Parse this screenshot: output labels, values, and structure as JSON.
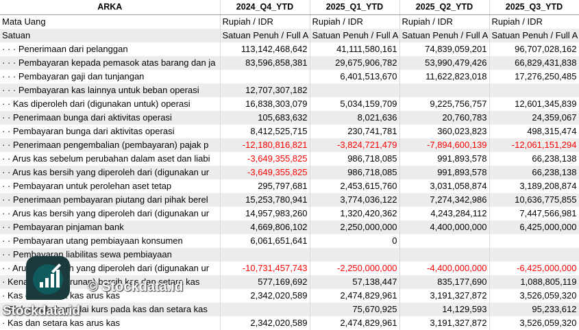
{
  "header": [
    "ARKA",
    "2024_Q4_YTD",
    "2025_Q1_YTD",
    "2025_Q2_YTD",
    "2025_Q3_YTD"
  ],
  "rows": [
    {
      "label": "Mata Uang",
      "values": [
        "Rupiah / IDR",
        "Rupiah / IDR",
        "Rupiah / IDR",
        "Rupiah / IDR"
      ],
      "type": "text"
    },
    {
      "label": "Satuan",
      "values": [
        "Satuan Penuh / Full A",
        "Satuan Penuh / Full A",
        "Satuan Penuh / Full A",
        "Satuan Penuh / Full A"
      ],
      "type": "text"
    },
    {
      "label": "· · · Penerimaan dari pelanggan",
      "values": [
        "113,142,468,642",
        "41,111,580,161",
        "74,839,059,201",
        "96,707,028,162"
      ]
    },
    {
      "label": "· · · Pembayaran kepada pemasok atas barang dan ja",
      "values": [
        "83,596,858,381",
        "29,675,906,782",
        "53,990,479,426",
        "66,829,431,838"
      ]
    },
    {
      "label": "· · · Pembayaran gaji dan tunjangan",
      "values": [
        "",
        "6,401,513,670",
        "11,622,823,018",
        "17,276,250,485"
      ]
    },
    {
      "label": "· · · Pembayaran kas lainnya untuk beban operasi",
      "values": [
        "12,707,307,182",
        "",
        "",
        ""
      ]
    },
    {
      "label": "· · Kas diperoleh dari (digunakan untuk) operasi",
      "values": [
        "16,838,303,079",
        "5,034,159,709",
        "9,225,756,757",
        "12,601,345,839"
      ]
    },
    {
      "label": "· · Penerimaan bunga dari aktivitas operasi",
      "values": [
        "105,683,632",
        "8,021,636",
        "20,760,783",
        "24,359,067"
      ]
    },
    {
      "label": "· · Pembayaran bunga dari aktivitas operasi",
      "values": [
        "8,412,525,715",
        "230,741,781",
        "360,023,823",
        "498,315,474"
      ]
    },
    {
      "label": "· · Penerimaan pengembalian (pembayaran) pajak p",
      "values": [
        "-12,180,816,821",
        "-3,824,721,479",
        "-7,894,600,139",
        "-12,061,151,294"
      ],
      "neg": true
    },
    {
      "label": "· · Arus kas sebelum perubahan dalam aset dan liabi",
      "values": [
        "-3,649,355,825",
        "986,718,085",
        "991,893,578",
        "66,238,138"
      ],
      "negFirst": true
    },
    {
      "label": "· · Arus kas bersih yang diperoleh dari (digunakan ur",
      "values": [
        "-3,649,355,825",
        "986,718,085",
        "991,893,578",
        "66,238,138"
      ],
      "negFirst": true
    },
    {
      "label": "· · Pembayaran untuk perolehan aset tetap",
      "values": [
        "295,797,681",
        "2,453,615,760",
        "3,031,058,874",
        "3,189,208,874"
      ]
    },
    {
      "label": "· · Penerimaan pembayaran piutang dari pihak berel",
      "values": [
        "15,253,780,941",
        "3,774,036,122",
        "7,274,342,986",
        "10,636,775,855"
      ]
    },
    {
      "label": "· · Arus kas bersih yang diperoleh dari (digunakan ur",
      "values": [
        "14,957,983,260",
        "1,320,420,362",
        "4,243,284,112",
        "7,447,566,981"
      ]
    },
    {
      "label": "· · Pembayaran pinjaman bank",
      "values": [
        "4,669,806,102",
        "2,250,000,000",
        "4,400,000,000",
        "6,425,000,000"
      ]
    },
    {
      "label": "· · Pembayaran utang pembiayaan konsumen",
      "values": [
        "6,061,651,641",
        "0",
        "",
        ""
      ]
    },
    {
      "label": "· · Pembayaran liabilitas sewa pembiayaan",
      "values": [
        "",
        "",
        "",
        ""
      ]
    },
    {
      "label": "· · Arus kas bersih yang diperoleh dari (digunakan ur",
      "values": [
        "-10,731,457,743",
        "-2,250,000,000",
        "-4,400,000,000",
        "-6,425,000,000"
      ],
      "neg": true
    },
    {
      "label": "· Kenaikan (penurunan) bersih kas dan setara kas",
      "values": [
        "577,169,692",
        "57,138,447",
        "835,177,690",
        "1,088,805,119"
      ]
    },
    {
      "label": "· Kas dan setara kas arus kas",
      "values": [
        "2,342,020,589",
        "2,474,829,961",
        "3,191,327,872",
        "3,526,059,320"
      ]
    },
    {
      "label": "· Efek perubahan nilai kurs pada kas dan setara kas",
      "values": [
        "",
        "75,670,925",
        "14,129,593",
        "95,233,612"
      ]
    },
    {
      "label": "· Kas dan setara kas arus kas",
      "values": [
        "2,342,020,589",
        "2,474,829,961",
        "3,191,327,872",
        "3,526,059,320"
      ]
    }
  ],
  "watermark": {
    "copyright": "© Stockdata.id",
    "brand": "Stockdata.id",
    "icon": "bar-chart-logo-icon"
  }
}
